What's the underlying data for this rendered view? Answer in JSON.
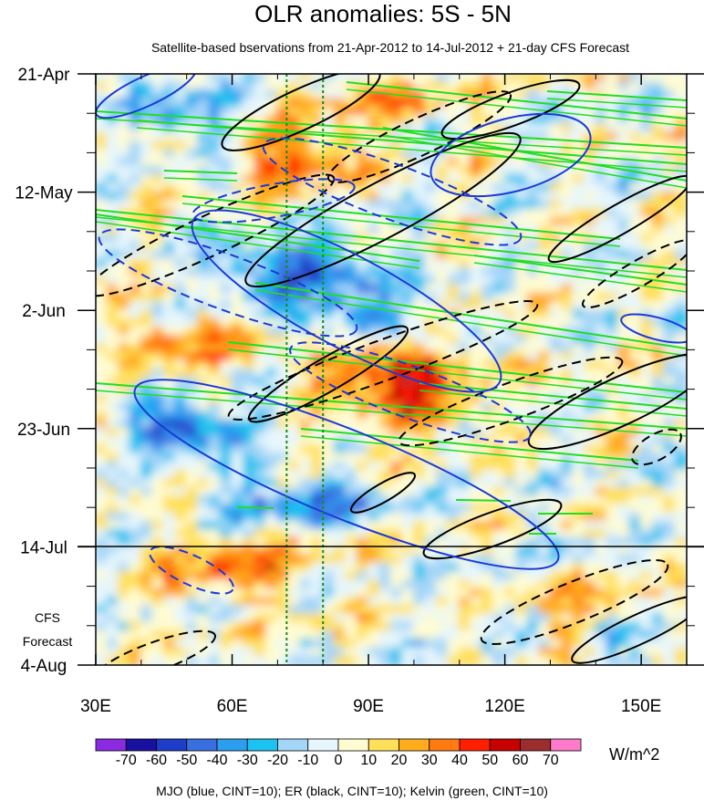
{
  "chart_data": {
    "type": "heatmap",
    "title": "OLR anomalies: 5S - 5N",
    "subtitle": "Satellite-based bservations from 21-Apr-2012 to 14-Jul-2012 + 21-day CFS Forecast",
    "x_ticks": [
      {
        "value": 30,
        "label": "30E"
      },
      {
        "value": 60,
        "label": "60E"
      },
      {
        "value": 90,
        "label": "90E"
      },
      {
        "value": 120,
        "label": "120E"
      },
      {
        "value": 150,
        "label": "150E"
      }
    ],
    "xlim": [
      30,
      160
    ],
    "y_ticks": [
      {
        "day": 0,
        "label": "21-Apr"
      },
      {
        "day": 21,
        "label": "12-May"
      },
      {
        "day": 42,
        "label": "2-Jun"
      },
      {
        "day": 63,
        "label": "23-Jun"
      },
      {
        "day": 84,
        "label": "14-Jul"
      },
      {
        "day": 105,
        "label": "4-Aug"
      }
    ],
    "ylim_days": [
      0,
      105
    ],
    "forecast_label_lines": [
      "CFS",
      "Forecast"
    ],
    "observation_end": "14-Jul",
    "reference_longitudes": [
      72,
      80
    ],
    "colorbar": {
      "levels": [
        "-70",
        "-60",
        "-50",
        "-40",
        "-30",
        "-20",
        "-10",
        "0",
        "10",
        "20",
        "30",
        "40",
        "50",
        "60",
        "70"
      ],
      "colors": [
        "#8a2be2",
        "#1a10a0",
        "#1e3dc8",
        "#3a6fe0",
        "#2c9ef0",
        "#1cc2f0",
        "#a4d6f8",
        "#e6f6fc",
        "#fffcd2",
        "#ffe05a",
        "#ffac1e",
        "#ff7a10",
        "#ff1e00",
        "#c80000",
        "#9b2d2d",
        "#ff7ac8"
      ],
      "units": "W/m^2"
    },
    "footer": "MJO (blue, CINT=10); ER (black, CINT=10); Kelvin (green, CINT=10)",
    "series_colors": {
      "mjo": "#1a3ad8",
      "er": "#000000",
      "kelvin": "#22dd22",
      "reference_lines": "#1a8a1a"
    }
  }
}
